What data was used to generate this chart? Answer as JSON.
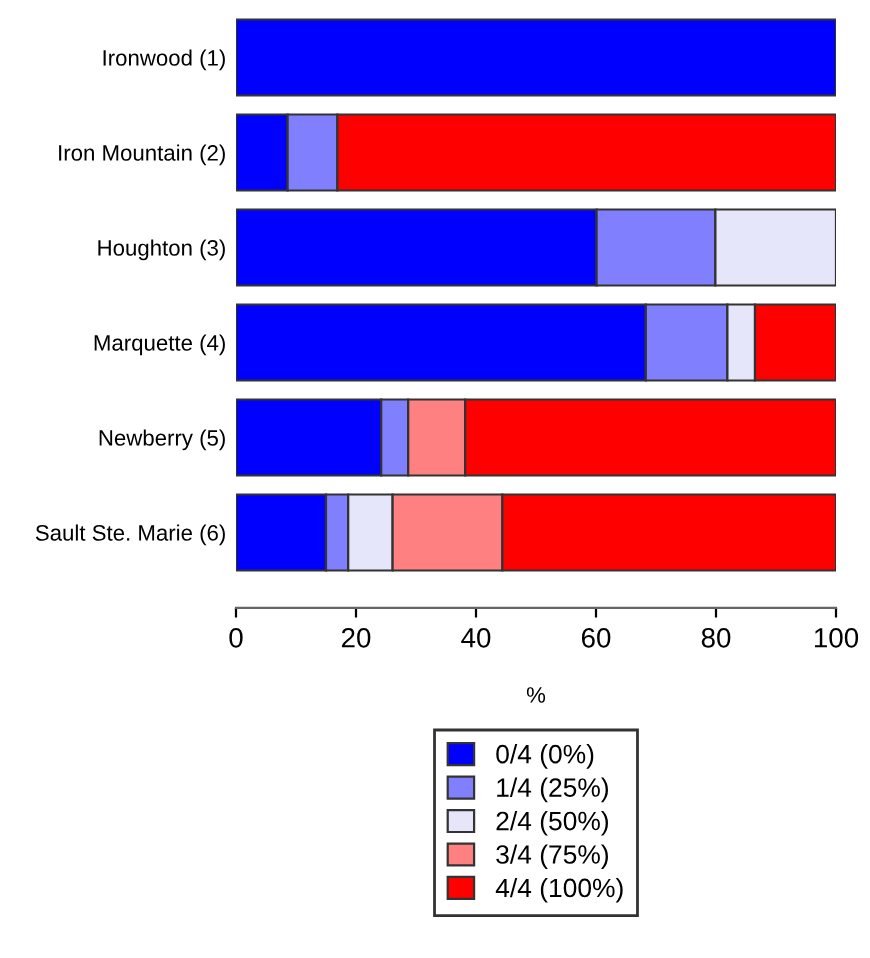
{
  "chart_data": {
    "type": "bar",
    "orientation": "horizontal",
    "stacked": true,
    "xlabel": "%",
    "categories": [
      "Ironwood (1)",
      "Iron Mountain (2)",
      "Houghton (3)",
      "Marquette (4)",
      "Newberry (5)",
      "Sault Ste. Marie (6)"
    ],
    "series": [
      {
        "name": "0/4 (0%)",
        "color": "#0000ff",
        "values": [
          100,
          8.6,
          60.1,
          68.3,
          24.2,
          15.0
        ]
      },
      {
        "name": "1/4 (25%)",
        "color": "#8080ff",
        "values": [
          null,
          8.3,
          19.8,
          13.6,
          4.5,
          3.7
        ]
      },
      {
        "name": "2/4 (50%)",
        "color": "#e6e6fa",
        "values": [
          null,
          null,
          20.1,
          4.6,
          null,
          7.4
        ]
      },
      {
        "name": "3/4 (75%)",
        "color": "#ff8080",
        "values": [
          null,
          null,
          null,
          null,
          9.5,
          18.3
        ]
      },
      {
        "name": "4/4 (100%)",
        "color": "#ff0000",
        "values": [
          null,
          83.1,
          null,
          13.5,
          61.8,
          55.6
        ]
      }
    ],
    "xlim": [
      0,
      100
    ],
    "xticks": [
      0,
      20,
      40,
      60,
      80,
      100
    ],
    "grid": false,
    "legend": "bottom"
  }
}
